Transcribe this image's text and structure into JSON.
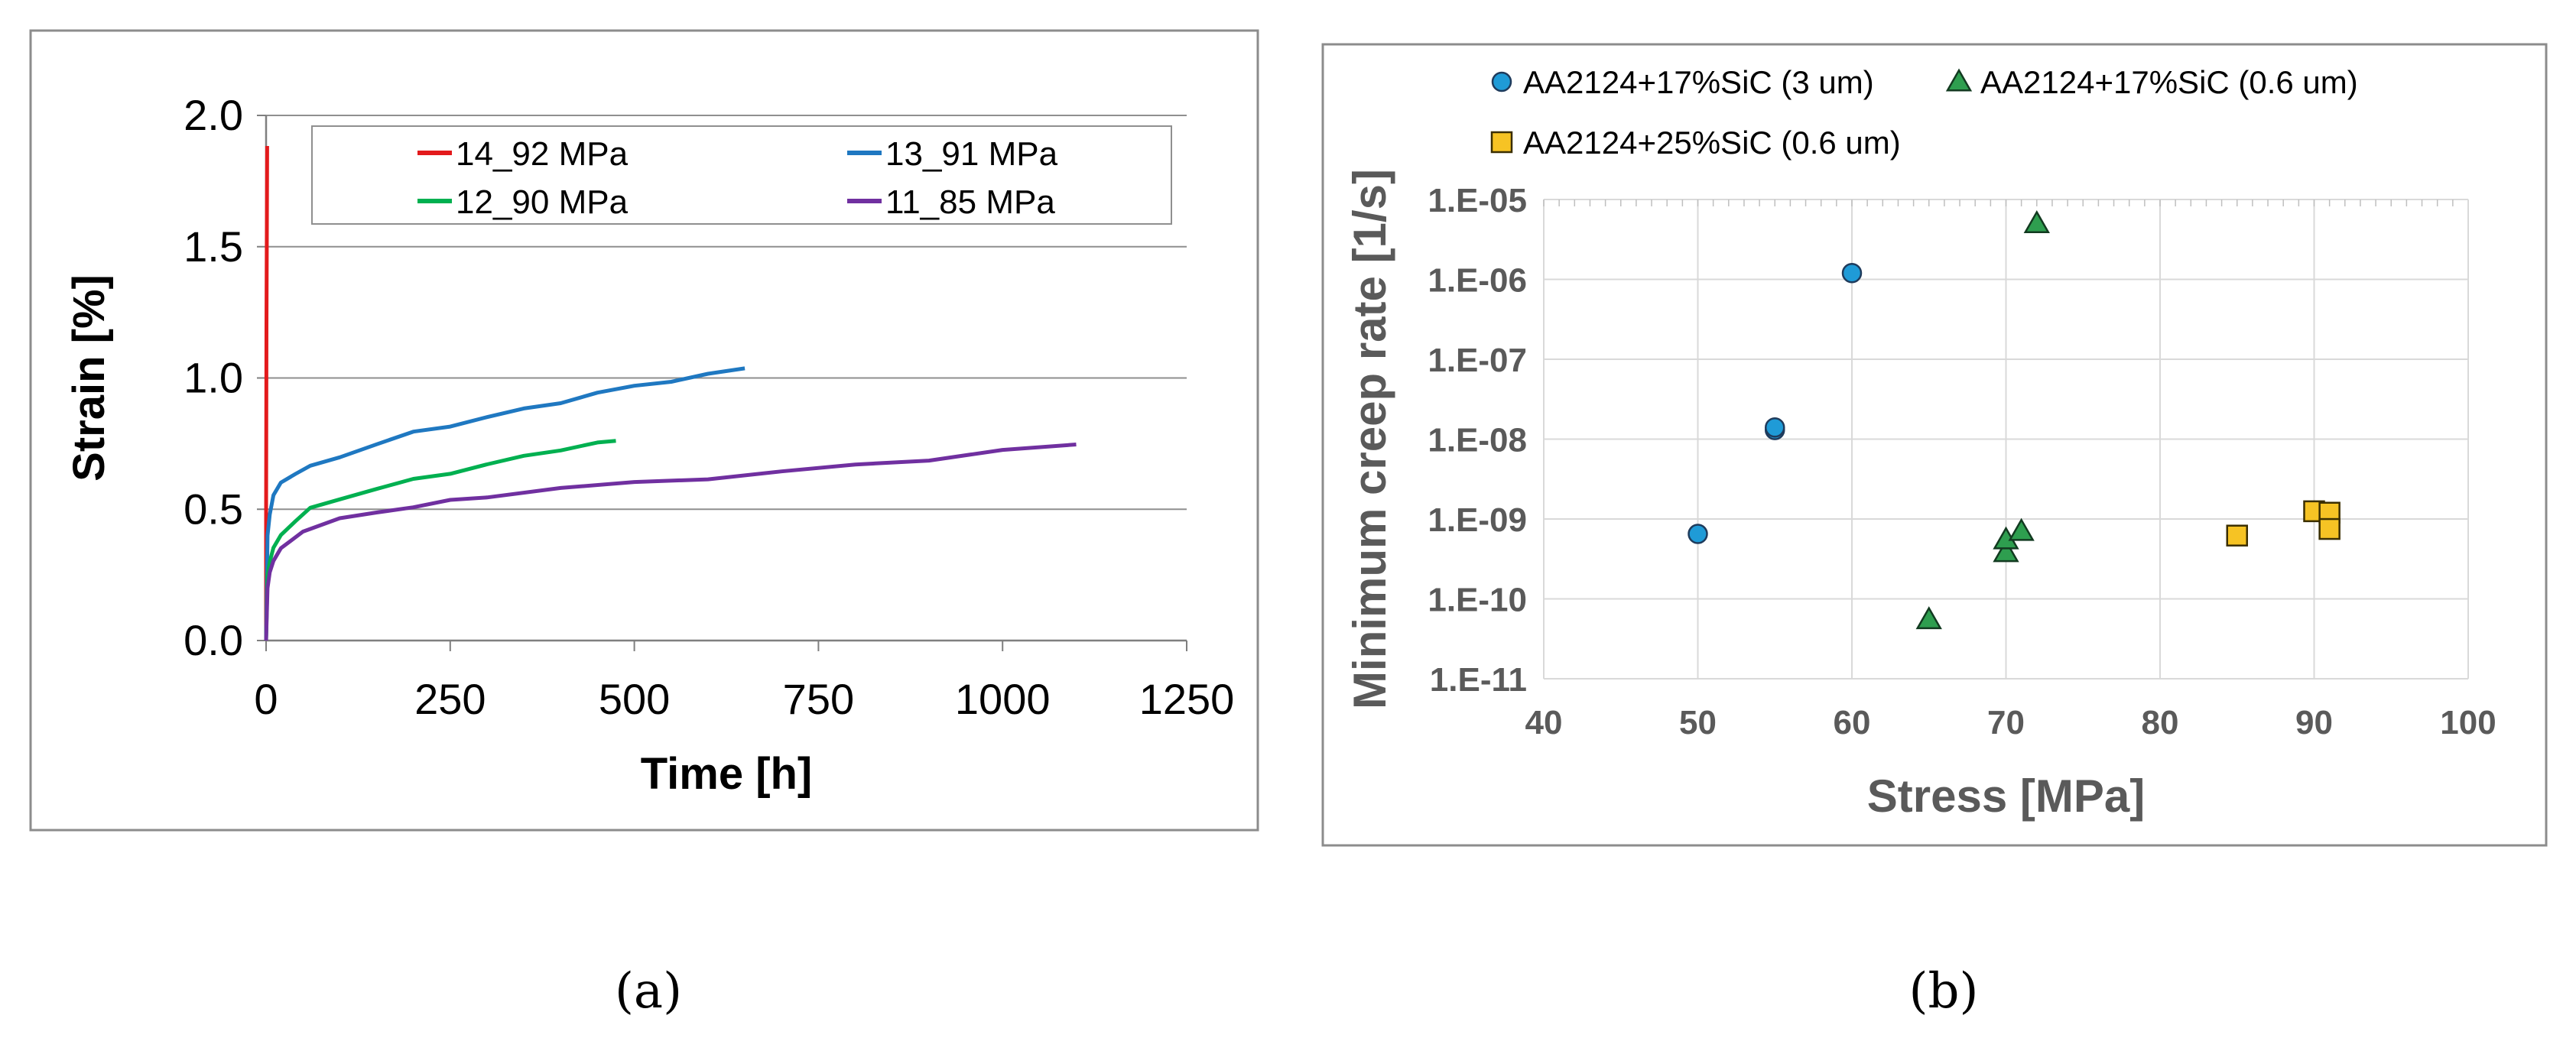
{
  "chart_data": [
    {
      "panel": "(a)",
      "type": "line",
      "xlabel": "Time [h]",
      "ylabel": "Strain [%]",
      "xlim": [
        0,
        1250
      ],
      "ylim": [
        0,
        2.0
      ],
      "xticks": [
        "0",
        "250",
        "500",
        "750",
        "1000",
        "1250"
      ],
      "yticks": [
        "0.0",
        "0.5",
        "1.0",
        "1.5",
        "2.0"
      ],
      "grid": "horizontal",
      "legend_position": "top",
      "series": [
        {
          "name": "14_92 MPa",
          "color": "#e31a1c",
          "x": [
            0,
            0,
            0.5,
            1.5
          ],
          "y": [
            0,
            0.45,
            1.2,
            1.88
          ]
        },
        {
          "name": "13_91 MPa",
          "color": "#1f78c1",
          "x": [
            0,
            2,
            5,
            10,
            20,
            40,
            60,
            100,
            150,
            200,
            250,
            300,
            350,
            400,
            450,
            500,
            550,
            600,
            650
          ],
          "y": [
            0,
            0.4,
            0.48,
            0.55,
            0.6,
            0.64,
            0.66,
            0.7,
            0.75,
            0.79,
            0.82,
            0.85,
            0.88,
            0.91,
            0.94,
            0.97,
            0.99,
            1.01,
            1.04
          ]
        },
        {
          "name": "12_90 MPa",
          "color": "#00b050",
          "x": [
            0,
            2,
            5,
            10,
            20,
            40,
            60,
            100,
            150,
            200,
            250,
            300,
            350,
            400,
            450,
            475
          ],
          "y": [
            0,
            0.25,
            0.3,
            0.35,
            0.4,
            0.46,
            0.5,
            0.54,
            0.58,
            0.61,
            0.64,
            0.67,
            0.7,
            0.73,
            0.75,
            0.76
          ]
        },
        {
          "name": "11_85 MPa",
          "color": "#7030a0",
          "x": [
            0,
            2,
            5,
            10,
            20,
            50,
            100,
            150,
            200,
            250,
            300,
            400,
            500,
            600,
            700,
            800,
            900,
            1000,
            1100
          ],
          "y": [
            0,
            0.2,
            0.26,
            0.3,
            0.35,
            0.42,
            0.46,
            0.49,
            0.51,
            0.53,
            0.55,
            0.58,
            0.6,
            0.62,
            0.64,
            0.67,
            0.69,
            0.72,
            0.75
          ]
        }
      ]
    },
    {
      "panel": "(b)",
      "type": "scatter",
      "xlabel": "Stress [MPa]",
      "ylabel": "Minimum creep rate [1/s]",
      "xlim": [
        40,
        100
      ],
      "ylim": [
        1e-11,
        1e-05
      ],
      "yscale": "log",
      "xticks": [
        "40",
        "50",
        "60",
        "70",
        "80",
        "90",
        "100"
      ],
      "yticks": [
        "1.E-11",
        "1.E-10",
        "1.E-09",
        "1.E-08",
        "1.E-07",
        "1.E-06",
        "1.E-05"
      ],
      "grid": "both",
      "legend_position": "top",
      "series": [
        {
          "name": "AA2124+17%SiC (3 um)",
          "marker": "circle",
          "color": "#1f9bd7",
          "x": [
            50,
            55,
            55,
            60
          ],
          "y": [
            6.5e-10,
            1.3e-08,
            1.4e-08,
            1.2e-06
          ]
        },
        {
          "name": "AA2124+17%SiC (0.6 um)",
          "marker": "triangle",
          "color": "#2e9e4f",
          "x": [
            65,
            70,
            70,
            71,
            72
          ],
          "y": [
            5.5e-11,
            3.8e-10,
            5.5e-10,
            7e-10,
            5e-06
          ]
        },
        {
          "name": "AA2124+25%SiC (0.6 um)",
          "marker": "square",
          "color": "#f6c324",
          "x": [
            85,
            90,
            91,
            91
          ],
          "y": [
            6.2e-10,
            1.25e-09,
            1.2e-09,
            7.5e-10
          ]
        }
      ]
    }
  ],
  "captions": {
    "a": "(a)",
    "b": "(b)"
  }
}
